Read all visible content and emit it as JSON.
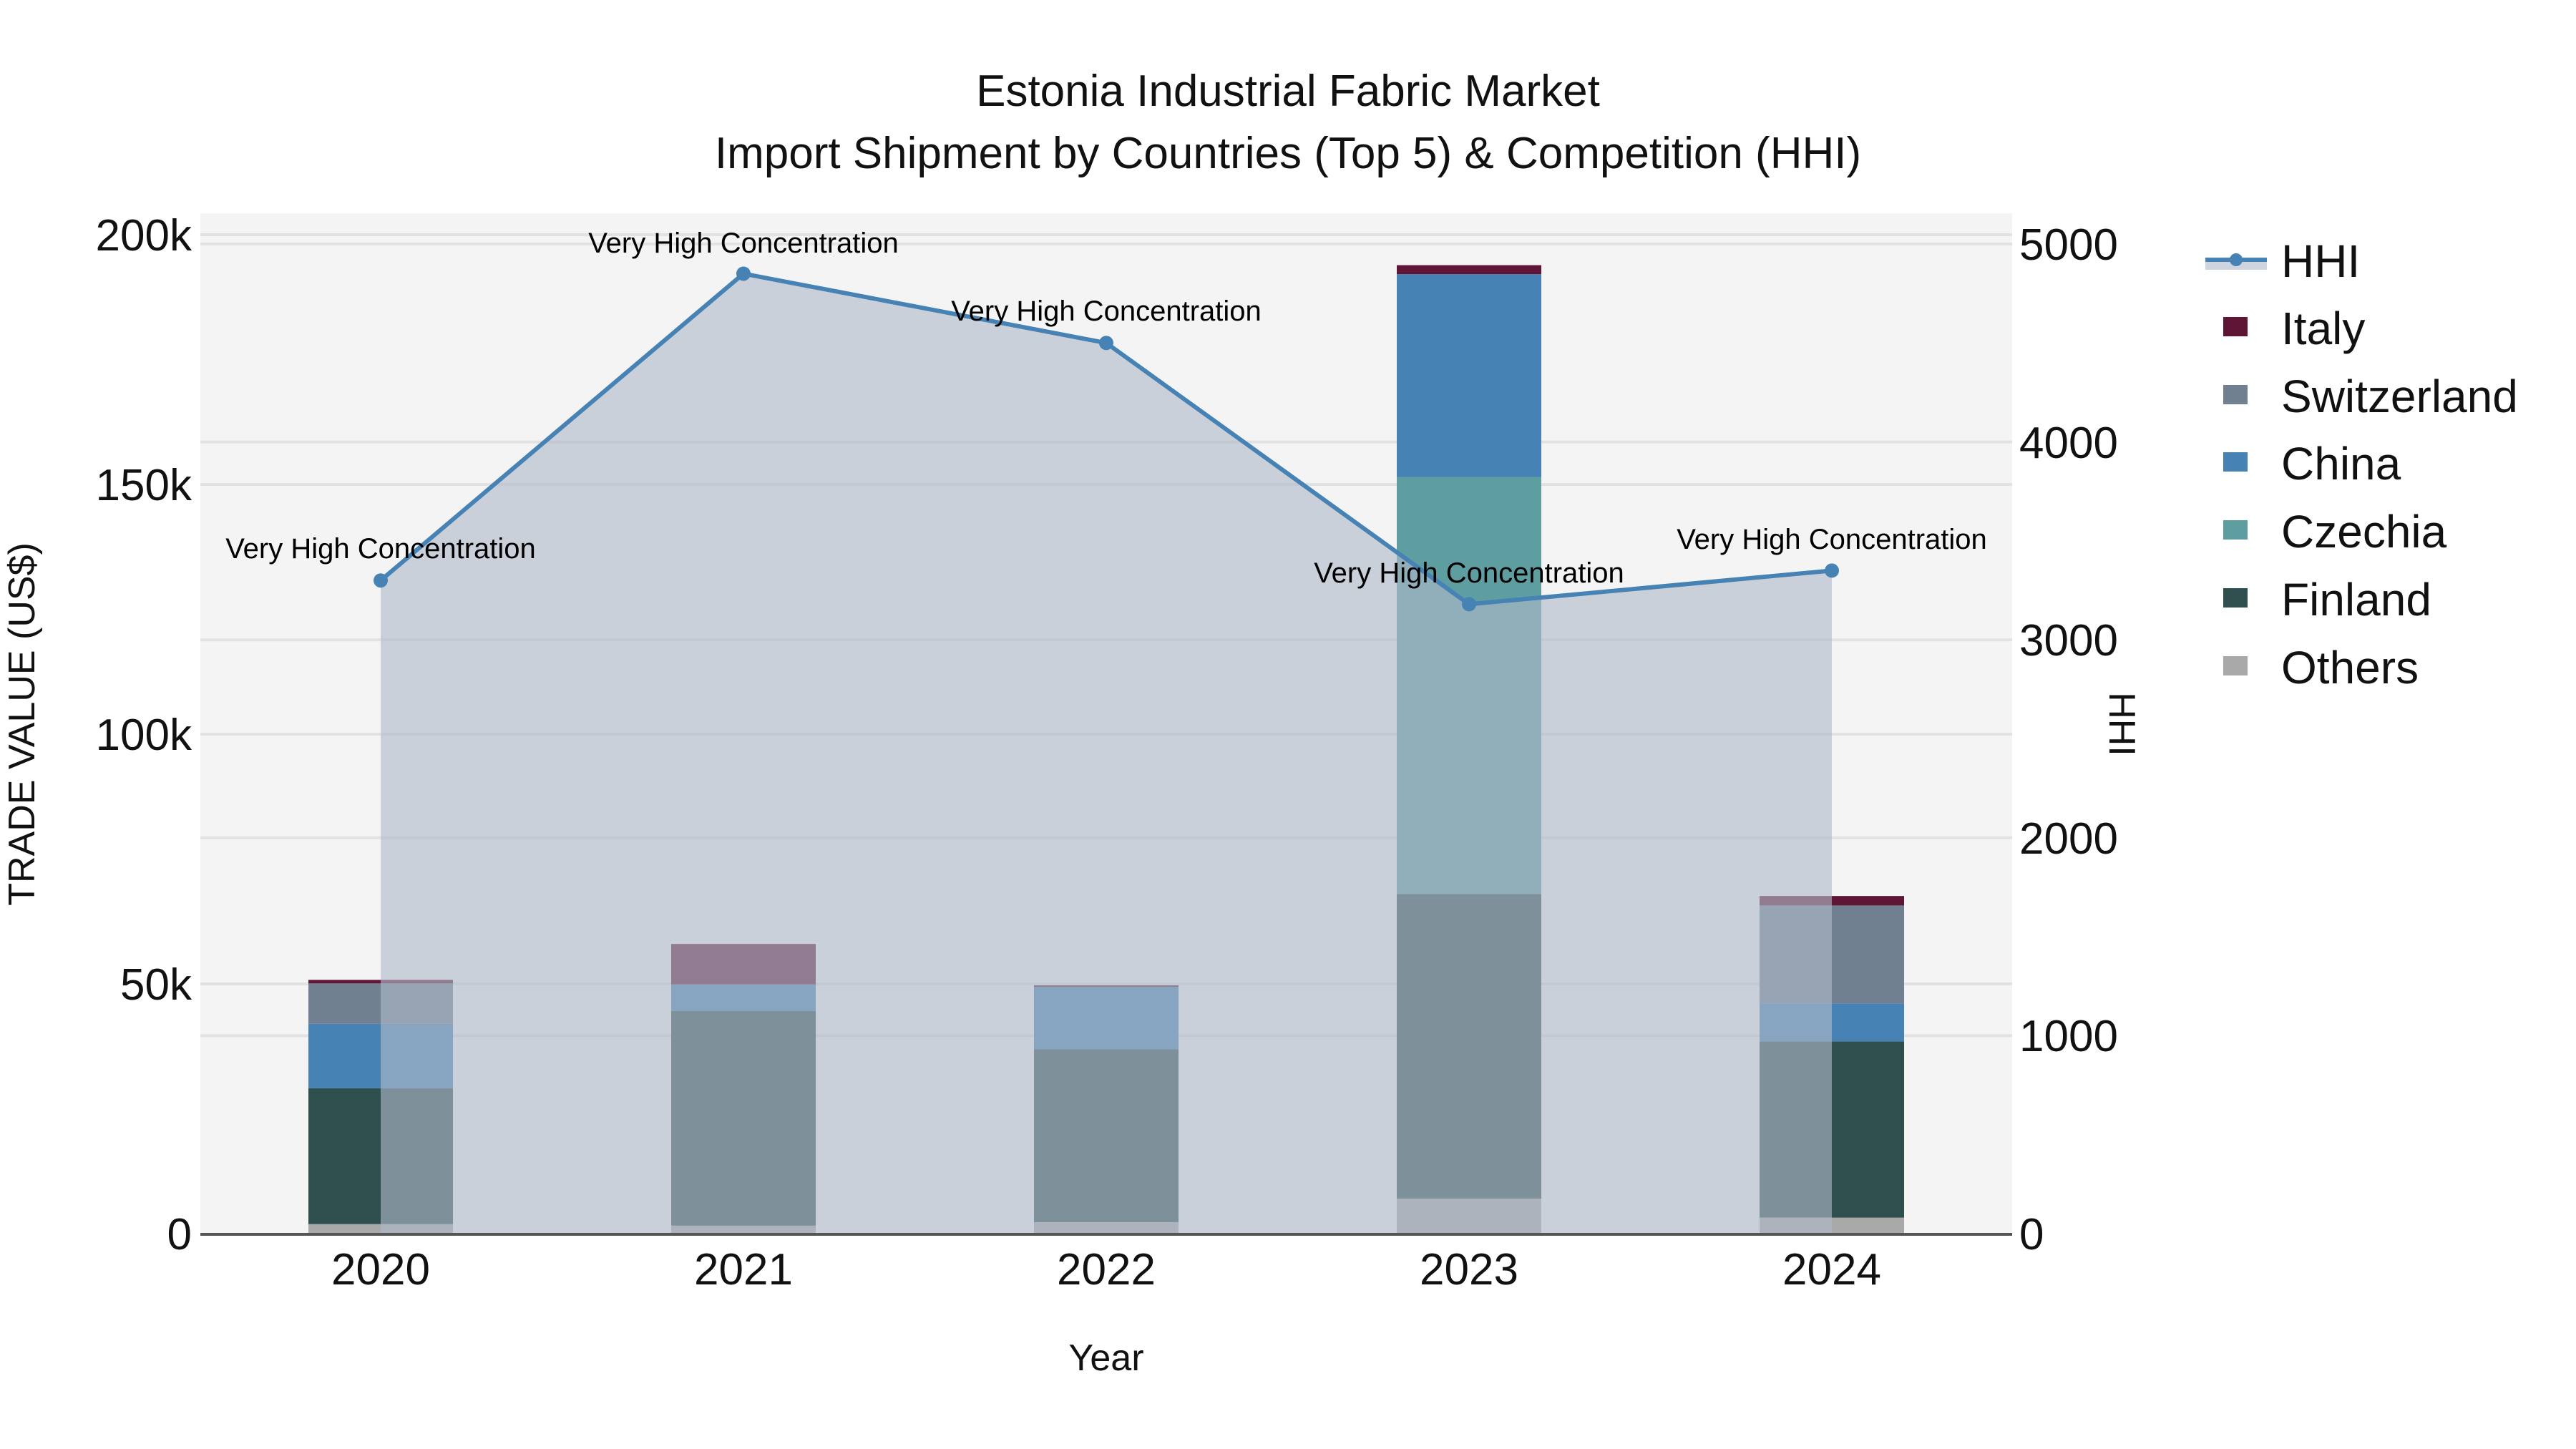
{
  "title": {
    "line1": "Estonia Industrial Fabric Market",
    "line2": "Import Shipment by Countries (Top 5) & Competition (HHI)"
  },
  "axes": {
    "x_title": "Year",
    "y_left_title": "TRADE VALUE (US$)",
    "y_right_title": "HHI",
    "y_left_ticks": [
      "0",
      "50k",
      "100k",
      "150k",
      "200k"
    ],
    "y_right_ticks": [
      "0",
      "1000",
      "2000",
      "3000",
      "4000",
      "5000"
    ],
    "x_ticks": [
      "2020",
      "2021",
      "2022",
      "2023",
      "2024"
    ]
  },
  "legend": [
    {
      "label": "HHI",
      "type": "line",
      "color": "#4682b4"
    },
    {
      "label": "Italy",
      "type": "box",
      "color": "#5f1535"
    },
    {
      "label": "Switzerland",
      "type": "box",
      "color": "#708090"
    },
    {
      "label": "China",
      "type": "box",
      "color": "#4682b4"
    },
    {
      "label": "Czechia",
      "type": "box",
      "color": "#5f9ea0"
    },
    {
      "label": "Finland",
      "type": "box",
      "color": "#2f4f4f"
    },
    {
      "label": "Others",
      "type": "box",
      "color": "#a9a9a9"
    }
  ],
  "colors": {
    "plot_bg": "#f4f4f4",
    "hhi_line": "#4682b4",
    "hhi_fill": "rgba(176,186,202,0.62)",
    "grid": "#e2e2e2",
    "axis_line": "#555555"
  },
  "chart_data": {
    "type": "bar",
    "stacked": true,
    "title": "Estonia Industrial Fabric Market — Import Shipment by Countries (Top 5) & Competition (HHI)",
    "xlabel": "Year",
    "ylabel": "TRADE VALUE (US$)",
    "y2label": "HHI",
    "ylim": [
      0,
      204000
    ],
    "y2lim": [
      0,
      5100
    ],
    "categories": [
      "2020",
      "2021",
      "2022",
      "2023",
      "2024"
    ],
    "series": [
      {
        "name": "Others",
        "color": "#a9a9a9",
        "values": [
          1900,
          1600,
          2300,
          7000,
          3200
        ]
      },
      {
        "name": "Finland",
        "color": "#2f4f4f",
        "values": [
          27200,
          43000,
          34600,
          61000,
          35300
        ]
      },
      {
        "name": "Czechia",
        "color": "#5f9ea0",
        "values": [
          0,
          0,
          0,
          83500,
          0
        ]
      },
      {
        "name": "China",
        "color": "#4682b4",
        "values": [
          12900,
          5300,
          12500,
          40600,
          7600
        ]
      },
      {
        "name": "Switzerland",
        "color": "#708090",
        "values": [
          8100,
          0,
          0,
          0,
          19600
        ]
      },
      {
        "name": "Italy",
        "color": "#5f1535",
        "values": [
          700,
          8100,
          300,
          1800,
          1900
        ]
      }
    ],
    "line_series": {
      "name": "HHI",
      "axis": "right",
      "type": "line+area",
      "values": [
        3300,
        4850,
        4500,
        3180,
        3350
      ],
      "annotations": [
        "Very High Concentration",
        "Very High Concentration",
        "Very High Concentration",
        "Very High Concentration",
        "Very High Concentration"
      ]
    },
    "grid": true,
    "legend_position": "right"
  }
}
